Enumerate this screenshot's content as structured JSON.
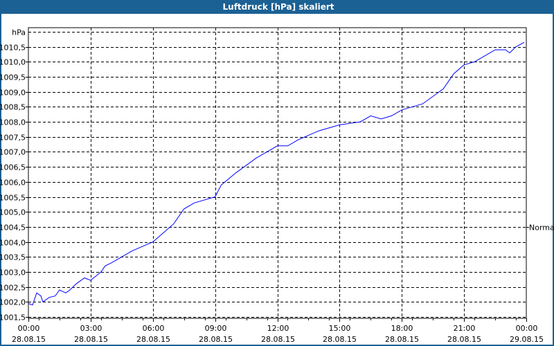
{
  "window": {
    "title": "Luftdruck [hPa] skaliert"
  },
  "chart_data": {
    "type": "line",
    "title": "Luftdruck [hPa] skaliert",
    "ylabel": "hPa",
    "ylim": [
      1001.5,
      1011.0
    ],
    "yticks": [
      1010.5,
      1010.0,
      1009.5,
      1009.0,
      1008.5,
      1008.0,
      1007.5,
      1007.0,
      1006.5,
      1006.0,
      1005.5,
      1005.0,
      1004.5,
      1004.0,
      1003.5,
      1003.0,
      1002.5,
      1002.0,
      1001.5
    ],
    "ytick_labels": [
      "1010,5",
      "1010,0",
      "1009,5",
      "1009,0",
      "1008,5",
      "1008,0",
      "1007,5",
      "1007,0",
      "1006,5",
      "1006,0",
      "1005,5",
      "1005,0",
      "1004,5",
      "1004,0",
      "1003,5",
      "1003,0",
      "1002,5",
      "1002,0",
      "1001,5"
    ],
    "xlim_hours": [
      0,
      24
    ],
    "xticks": [
      {
        "time": "00:00",
        "date": "28.08.15"
      },
      {
        "time": "03:00",
        "date": "28.08.15"
      },
      {
        "time": "06:00",
        "date": "28.08.15"
      },
      {
        "time": "09:00",
        "date": "28.08.15"
      },
      {
        "time": "12:00",
        "date": "28.08.15"
      },
      {
        "time": "15:00",
        "date": "28.08.15"
      },
      {
        "time": "18:00",
        "date": "28.08.15"
      },
      {
        "time": "21:00",
        "date": "28.08.15"
      },
      {
        "time": "00:00",
        "date": "29.08.15"
      }
    ],
    "grid": true,
    "legend": {
      "placement": "right",
      "label": "Normal"
    },
    "series": [
      {
        "name": "Normal",
        "color": "#0000ff",
        "x_hours": [
          0,
          0.2,
          0.4,
          0.6,
          0.7,
          1.0,
          1.3,
          1.5,
          1.8,
          2.0,
          2.3,
          2.7,
          3.0,
          3.5,
          3.7,
          4.0,
          5.0,
          6.0,
          6.5,
          7.0,
          7.5,
          8.0,
          9.0,
          9.3,
          10.0,
          11.0,
          12.0,
          12.5,
          13.0,
          14.0,
          15.0,
          16.0,
          16.5,
          17.0,
          17.5,
          18.0,
          19.0,
          20.0,
          20.5,
          21.0,
          21.5,
          22.0,
          22.5,
          23.0,
          23.2,
          23.5,
          23.9
        ],
        "values": [
          1001.95,
          1001.9,
          1002.3,
          1002.2,
          1002.0,
          1002.15,
          1002.2,
          1002.4,
          1002.3,
          1002.4,
          1002.6,
          1002.8,
          1002.72,
          1003.0,
          1003.2,
          1003.3,
          1003.7,
          1004.0,
          1004.3,
          1004.6,
          1005.1,
          1005.3,
          1005.5,
          1005.9,
          1006.3,
          1006.8,
          1007.2,
          1007.2,
          1007.4,
          1007.7,
          1007.9,
          1008.0,
          1008.2,
          1008.1,
          1008.2,
          1008.4,
          1008.6,
          1009.1,
          1009.6,
          1009.9,
          1010.0,
          1010.2,
          1010.4,
          1010.4,
          1010.3,
          1010.5,
          1010.65
        ]
      }
    ]
  }
}
